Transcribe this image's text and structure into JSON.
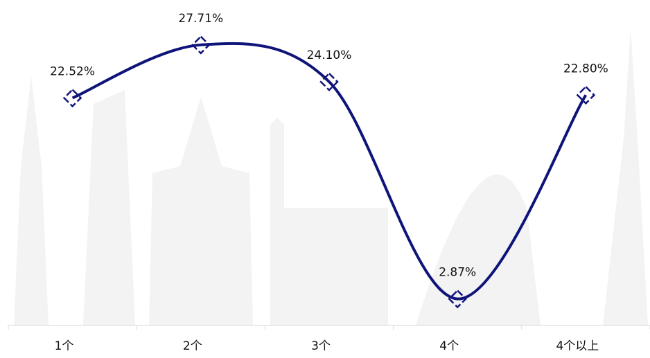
{
  "chart_data": {
    "type": "line",
    "categories": [
      "1个",
      "2个",
      "3个",
      "4个",
      "4个以上"
    ],
    "values": [
      22.52,
      27.71,
      24.1,
      2.87,
      22.8
    ],
    "value_labels": [
      "22.52%",
      "27.71%",
      "24.10%",
      "2.87%",
      "22.80%"
    ],
    "color": "#0f1479",
    "ylim": [
      0,
      30
    ]
  }
}
